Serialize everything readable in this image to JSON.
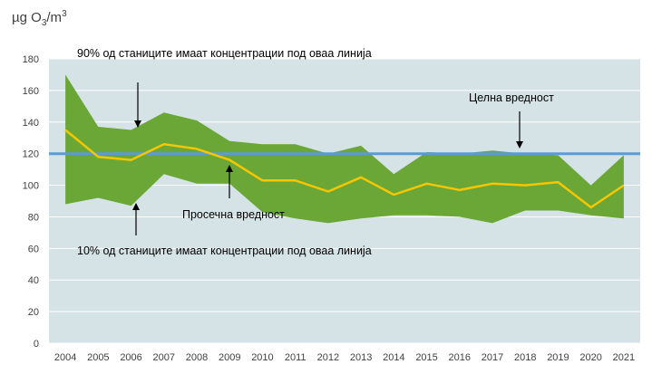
{
  "chart_data": {
    "type": "area",
    "ylabel": "µg O3/m3",
    "ylabel_parts": {
      "prefix": "µg O",
      "sub": "3",
      "mid": "/m",
      "sup": "3"
    },
    "x": [
      "2004",
      "2005",
      "2006",
      "2007",
      "2008",
      "2009",
      "2010",
      "2011",
      "2012",
      "2013",
      "2014",
      "2015",
      "2016",
      "2017",
      "2018",
      "2019",
      "2020",
      "2021"
    ],
    "ylim": [
      0,
      180
    ],
    "yticks": [
      0,
      20,
      40,
      60,
      80,
      100,
      120,
      140,
      160,
      180
    ],
    "grid": true,
    "series": [
      {
        "role": "p90",
        "values": [
          170,
          137,
          135,
          146,
          141,
          128,
          126,
          126,
          120,
          125,
          107,
          121,
          120,
          122,
          120,
          119,
          100,
          119
        ]
      },
      {
        "role": "p10",
        "values": [
          88,
          92,
          87,
          107,
          101,
          101,
          83,
          79,
          76,
          79,
          81,
          81,
          80,
          76,
          84,
          84,
          81,
          79
        ]
      },
      {
        "role": "mean",
        "values": [
          135,
          118,
          116,
          126,
          123,
          116,
          103,
          103,
          96,
          105,
          94,
          101,
          97,
          101,
          100,
          102,
          86,
          100
        ]
      },
      {
        "role": "target",
        "values": [
          120,
          120,
          120,
          120,
          120,
          120,
          120,
          120,
          120,
          120,
          120,
          120,
          120,
          120,
          120,
          120,
          120,
          120
        ]
      }
    ],
    "annotations": {
      "p90": "90% од станиците имаат концентрации под оваа линија",
      "target": "Целна вредност",
      "mean": "Просечна вредност",
      "p10": "10% од станиците имаат концентрации под оваа линија"
    },
    "colors": {
      "plot_background": "#d5e3e7",
      "band": "#6aa737",
      "mean_line": "#f7c600",
      "target_line": "#5b9bd5",
      "grid": "#ffffff",
      "axis_text": "#404040"
    }
  }
}
